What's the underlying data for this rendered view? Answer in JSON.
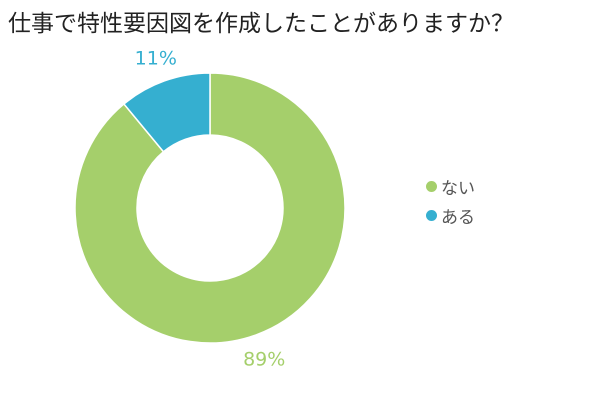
{
  "title": "仕事で特性要因図を作成したことがありますか？",
  "chart_data": {
    "type": "pie",
    "donut": true,
    "series": [
      {
        "name": "ない",
        "value": 89,
        "label": "89%",
        "color": "#a5cf6b"
      },
      {
        "name": "ある",
        "value": 11,
        "label": "11%",
        "color": "#35afd0"
      }
    ],
    "legend_position": "right"
  }
}
